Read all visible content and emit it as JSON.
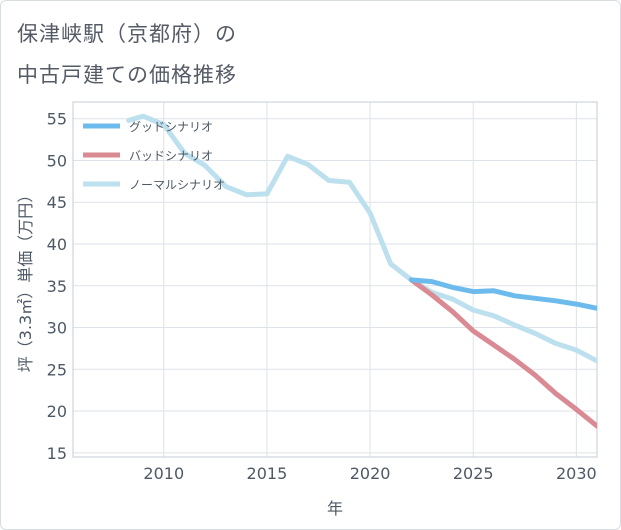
{
  "title": {
    "line1": "保津峡駅（京都府）の",
    "line2": "中古戸建ての価格推移"
  },
  "chart_data": {
    "type": "line",
    "xlabel": "年",
    "ylabel": "坪（3.3㎡）単価（万円）",
    "xlim": [
      2005.6,
      2031
    ],
    "ylim": [
      14.5,
      57
    ],
    "x_ticks": [
      2010,
      2015,
      2020,
      2025,
      2030
    ],
    "y_ticks": [
      15,
      20,
      25,
      30,
      35,
      40,
      45,
      50,
      55
    ],
    "grid": true,
    "legend_position": "top-left",
    "series": [
      {
        "name": "グッドシナリオ",
        "color": "#6dbbec",
        "x": [
          2022,
          2023,
          2024,
          2025,
          2026,
          2027,
          2028,
          2029,
          2030,
          2031
        ],
        "y": [
          35.7,
          35.5,
          34.8,
          34.3,
          34.4,
          33.8,
          33.5,
          33.2,
          32.8,
          32.3
        ]
      },
      {
        "name": "バッドシナリオ",
        "color": "#da8a92",
        "x": [
          2022,
          2023,
          2024,
          2025,
          2026,
          2027,
          2028,
          2029,
          2030,
          2031
        ],
        "y": [
          35.7,
          33.9,
          31.9,
          29.6,
          27.9,
          26.2,
          24.3,
          22.1,
          20.2,
          18.2
        ]
      },
      {
        "name": "ノーマルシナリオ",
        "color": "#bde0ee",
        "x": [
          2008.3,
          2009,
          2010,
          2011,
          2012,
          2013,
          2014,
          2015,
          2016,
          2017,
          2018,
          2019,
          2020,
          2021,
          2022,
          2023,
          2024,
          2025,
          2026,
          2027,
          2028,
          2029,
          2030,
          2031
        ],
        "y": [
          54.8,
          55.3,
          54.3,
          50.9,
          49.4,
          46.9,
          45.9,
          46.0,
          50.5,
          49.5,
          47.6,
          47.4,
          43.7,
          37.6,
          35.7,
          34.2,
          33.4,
          32.1,
          31.4,
          30.3,
          29.3,
          28.1,
          27.3,
          26.0
        ]
      }
    ]
  }
}
